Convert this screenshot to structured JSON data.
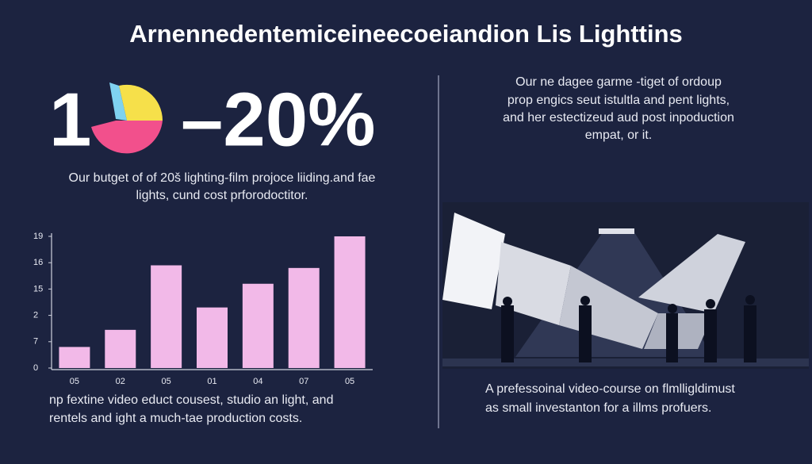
{
  "title": "Arnennedentemiceineecoeiandion Lis Lighttins",
  "stat": {
    "digit": "1",
    "percent": "–20%"
  },
  "left_caption": [
    "Our butget of of 20š lighting-film projoce liiding.and fae",
    "lights, cund cost prforodoctitor."
  ],
  "right_caption": [
    "Our ne dagee garme -tiget of ordoup",
    "prop engics seut istultla and pent lights,",
    "and her estectizeud aud post inpoduction",
    "empat, or it."
  ],
  "bottom_left_caption": [
    "np fextine video educt cousest, studio an light, and",
    "rentels and ight a much-tae production costs."
  ],
  "bottom_right_caption": [
    "A prefessoinal video-course on flmlligldimust",
    "as small investanton for a illms profuers."
  ],
  "chart_data": {
    "type": "bar",
    "categories": [
      "05",
      "02",
      "05",
      "01",
      "04",
      "07",
      "05"
    ],
    "values": [
      0.8,
      1.45,
      3.9,
      2.3,
      3.2,
      3.8,
      5.0
    ],
    "color": "#f2b9e8",
    "ylim": [
      0,
      5
    ],
    "yticks": [
      0,
      {
        "value": 1,
        "label": "7"
      },
      {
        "value": 2,
        "label": "2"
      },
      {
        "value": 3,
        "label": "15"
      },
      {
        "value": 4,
        "label": "16"
      },
      {
        "value": 5,
        "label": "19"
      }
    ]
  }
}
